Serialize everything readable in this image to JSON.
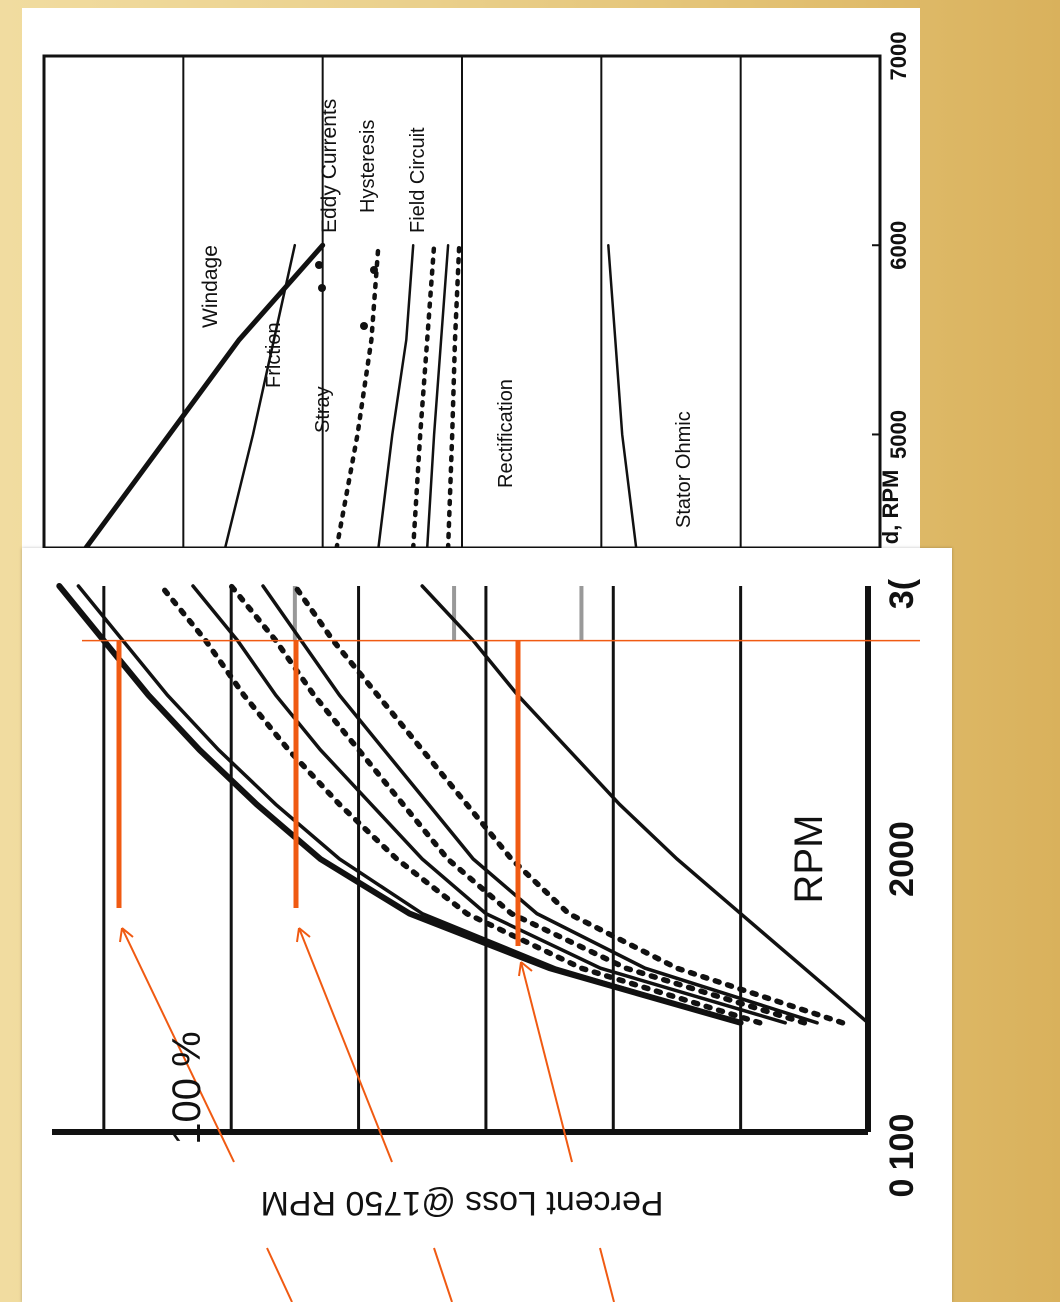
{
  "chart_data": [
    {
      "type": "line",
      "title": "",
      "xlabel": "d, RPM",
      "ylabel": "",
      "x_ticks": [
        "5000",
        "6000",
        "7000"
      ],
      "xlim": [
        4400,
        7000
      ],
      "ylim": [
        0,
        6
      ],
      "grid": true,
      "series": [
        {
          "name": "Windage",
          "style": "thick-solid",
          "x": [
            4400,
            5000,
            5500,
            6000
          ],
          "y": [
            5.7,
            5.1,
            4.6,
            4.0
          ]
        },
        {
          "name": "Friction",
          "style": "solid",
          "x": [
            4400,
            5000,
            5500,
            6000
          ],
          "y": [
            4.7,
            4.5,
            4.35,
            4.2
          ]
        },
        {
          "name": "Stray",
          "style": "dotted",
          "x": [
            4400,
            5000,
            5500,
            6000
          ],
          "y": [
            3.9,
            3.75,
            3.65,
            3.6
          ]
        },
        {
          "name": "Eddy Currents",
          "style": "solid",
          "x": [
            4400,
            5000,
            5500,
            6000
          ],
          "y": [
            3.6,
            3.5,
            3.4,
            3.35
          ]
        },
        {
          "name": "Hysteresis",
          "style": "dotted",
          "x": [
            4400,
            5000,
            5500,
            6000
          ],
          "y": [
            3.35,
            3.3,
            3.25,
            3.2
          ]
        },
        {
          "name": "Field Circuit",
          "style": "solid",
          "x": [
            4400,
            5000,
            5500,
            6000
          ],
          "y": [
            3.25,
            3.2,
            3.15,
            3.1
          ]
        },
        {
          "name": "Field Circuit",
          "style": "dotted",
          "x": [
            4400,
            5000,
            5500,
            6000
          ],
          "y": [
            3.1,
            3.07,
            3.05,
            3.02
          ]
        },
        {
          "name": "Rectification",
          "style": "label-only",
          "x": [],
          "y": []
        },
        {
          "name": "Stator Ohmic",
          "style": "solid",
          "x": [
            4400,
            5000,
            5500,
            6000
          ],
          "y": [
            1.75,
            1.85,
            1.9,
            1.95
          ]
        }
      ],
      "annotations": [
        "Windage",
        "Friction",
        "Stray",
        "Eddy Currents",
        "Hysteresis",
        "Field Circuit",
        "Rectification",
        "Stator Ohmic"
      ]
    },
    {
      "type": "line",
      "title": "",
      "xlabel": "RPM",
      "ylabel": "Percent Loss @1750 RPM",
      "x_ticks": [
        "100",
        "2000",
        "3("
      ],
      "y_ticks": [
        "0"
      ],
      "xlim": [
        1000,
        3000
      ],
      "ylim": [
        0,
        125
      ],
      "grid": true,
      "reference_rpm": 2800,
      "annotation": "100 %",
      "series": [
        {
          "name": "",
          "style": "thick-solid",
          "x": [
            1400,
            1600,
            1800,
            2000,
            2200,
            2400,
            2600,
            2800,
            3000
          ],
          "y": [
            20,
            50,
            72,
            86,
            96,
            105,
            113,
            120,
            127
          ]
        },
        {
          "name": "",
          "style": "solid",
          "x": [
            1400,
            1600,
            1800,
            2000,
            2200,
            2400,
            2600,
            2800,
            3000
          ],
          "y": [
            20,
            49,
            70,
            83,
            93,
            102,
            110,
            117,
            124
          ]
        },
        {
          "name": "",
          "style": "dotted",
          "x": [
            1400,
            1600,
            1800,
            2000,
            2200,
            2400,
            2600,
            2800,
            3000
          ],
          "y": [
            17,
            45,
            63,
            74,
            83,
            91,
            98,
            104,
            111
          ]
        },
        {
          "name": "",
          "style": "solid",
          "x": [
            1400,
            1600,
            1800,
            2000,
            2200,
            2400,
            2600,
            2800,
            3000
          ],
          "y": [
            13,
            42,
            60,
            70,
            78,
            86,
            93,
            99,
            106
          ]
        },
        {
          "name": "",
          "style": "dotted",
          "x": [
            1400,
            1600,
            1800,
            2000,
            2200,
            2400,
            2600,
            2800,
            3000
          ],
          "y": [
            10,
            38,
            56,
            66,
            73,
            80,
            87,
            93,
            100
          ]
        },
        {
          "name": "",
          "style": "solid",
          "x": [
            1400,
            1600,
            1800,
            2000,
            2200,
            2400,
            2600,
            2800,
            3000
          ],
          "y": [
            8,
            35,
            52,
            62,
            69,
            76,
            83,
            89,
            95
          ]
        },
        {
          "name": "",
          "style": "dotted",
          "x": [
            1400,
            1600,
            1800,
            2000,
            2200,
            2400,
            2600,
            2800,
            3000
          ],
          "y": [
            4,
            30,
            47,
            56,
            63,
            70,
            77,
            84,
            90
          ]
        },
        {
          "name": "",
          "style": "solid",
          "x": [
            1400,
            1600,
            1800,
            2000,
            2200,
            2400,
            2600,
            2800,
            3000
          ],
          "y": [
            0,
            10,
            20,
            30,
            39,
            47,
            55,
            62,
            70
          ]
        }
      ]
    }
  ]
}
